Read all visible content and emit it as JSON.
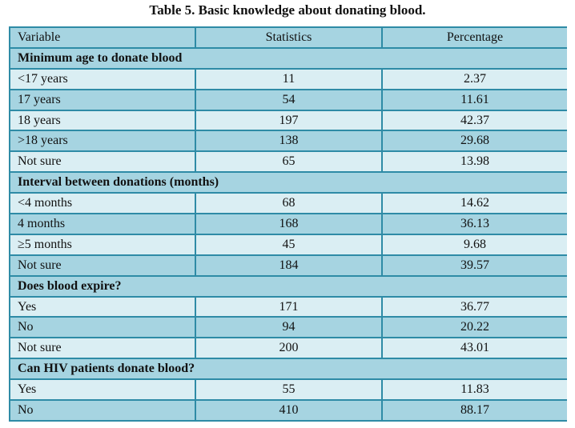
{
  "caption": "Table 5. Basic knowledge about donating blood.",
  "header": {
    "variable": "Variable",
    "statistics": "Statistics",
    "percentage": "Percentage"
  },
  "sections": [
    {
      "title": "Minimum age to donate blood",
      "rows": [
        {
          "label": "<17 years",
          "stat": "11",
          "pct": "2.37"
        },
        {
          "label": "17 years",
          "stat": "54",
          "pct": "11.61"
        },
        {
          "label": "18 years",
          "stat": "197",
          "pct": "42.37"
        },
        {
          "label": ">18 years",
          "stat": "138",
          "pct": "29.68"
        },
        {
          "label": "Not sure",
          "stat": "65",
          "pct": "13.98"
        }
      ]
    },
    {
      "title": "Interval between donations (months)",
      "rows": [
        {
          "label": "<4 months",
          "stat": "68",
          "pct": "14.62"
        },
        {
          "label": "4 months",
          "stat": "168",
          "pct": "36.13"
        },
        {
          "label": "≥5 months",
          "stat": "45",
          "pct": "9.68"
        },
        {
          "label": "Not sure",
          "stat": "184",
          "pct": "39.57"
        }
      ]
    },
    {
      "title": "Does blood expire?",
      "rows": [
        {
          "label": "Yes",
          "stat": "171",
          "pct": "36.77"
        },
        {
          "label": "No",
          "stat": "94",
          "pct": "20.22"
        },
        {
          "label": "Not sure",
          "stat": "200",
          "pct": "43.01"
        }
      ]
    },
    {
      "title": "Can HIV patients donate blood?",
      "rows": [
        {
          "label": "Yes",
          "stat": "55",
          "pct": "11.83"
        },
        {
          "label": "No",
          "stat": "410",
          "pct": "88.17"
        }
      ]
    }
  ]
}
